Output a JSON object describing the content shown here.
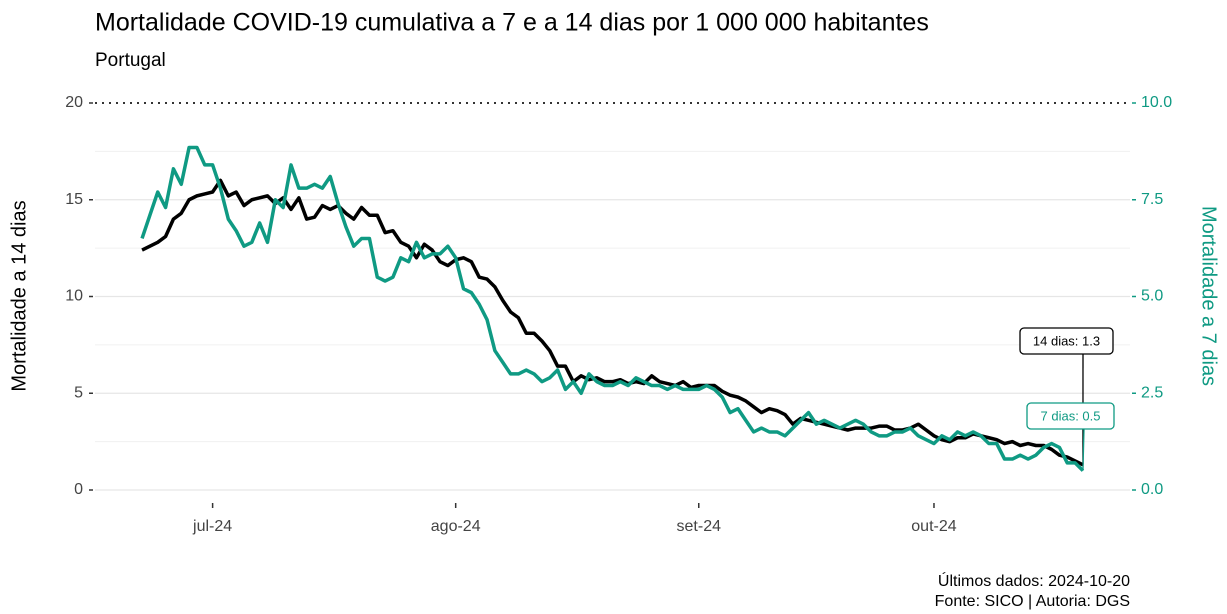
{
  "chart_data": {
    "type": "line",
    "title": "Mortalidade COVID-19 cumulativa a 7 e a 14 dias por 1 000 000 habitantes",
    "subtitle": "Portugal",
    "y_label": "Mortalidade a 14 dias",
    "y2_label": "Mortalidade a 7 dias",
    "footnotes": [
      "Últimos dados: 2024-10-20",
      "Fonte: SICO | Autoria: DGS"
    ],
    "annotations": [
      "14 dias: 1.3",
      "7 dias: 0.5"
    ],
    "x": [
      "2024-06-22",
      "2024-06-23",
      "2024-06-24",
      "2024-06-25",
      "2024-06-26",
      "2024-06-27",
      "2024-06-28",
      "2024-06-29",
      "2024-06-30",
      "2024-07-01",
      "2024-07-02",
      "2024-07-03",
      "2024-07-04",
      "2024-07-05",
      "2024-07-06",
      "2024-07-07",
      "2024-07-08",
      "2024-07-09",
      "2024-07-10",
      "2024-07-11",
      "2024-07-12",
      "2024-07-13",
      "2024-07-14",
      "2024-07-15",
      "2024-07-16",
      "2024-07-17",
      "2024-07-18",
      "2024-07-19",
      "2024-07-20",
      "2024-07-21",
      "2024-07-22",
      "2024-07-23",
      "2024-07-24",
      "2024-07-25",
      "2024-07-26",
      "2024-07-27",
      "2024-07-28",
      "2024-07-29",
      "2024-07-30",
      "2024-07-31",
      "2024-08-01",
      "2024-08-02",
      "2024-08-03",
      "2024-08-04",
      "2024-08-05",
      "2024-08-06",
      "2024-08-07",
      "2024-08-08",
      "2024-08-09",
      "2024-08-10",
      "2024-08-11",
      "2024-08-12",
      "2024-08-13",
      "2024-08-14",
      "2024-08-15",
      "2024-08-16",
      "2024-08-17",
      "2024-08-18",
      "2024-08-19",
      "2024-08-20",
      "2024-08-21",
      "2024-08-22",
      "2024-08-23",
      "2024-08-24",
      "2024-08-25",
      "2024-08-26",
      "2024-08-27",
      "2024-08-28",
      "2024-08-29",
      "2024-08-30",
      "2024-08-31",
      "2024-09-01",
      "2024-09-02",
      "2024-09-03",
      "2024-09-04",
      "2024-09-05",
      "2024-09-06",
      "2024-09-07",
      "2024-09-08",
      "2024-09-09",
      "2024-09-10",
      "2024-09-11",
      "2024-09-12",
      "2024-09-13",
      "2024-09-14",
      "2024-09-15",
      "2024-09-16",
      "2024-09-17",
      "2024-09-18",
      "2024-09-19",
      "2024-09-20",
      "2024-09-21",
      "2024-09-22",
      "2024-09-23",
      "2024-09-24",
      "2024-09-25",
      "2024-09-26",
      "2024-09-27",
      "2024-09-28",
      "2024-09-29",
      "2024-09-30",
      "2024-10-01",
      "2024-10-02",
      "2024-10-03",
      "2024-10-04",
      "2024-10-05",
      "2024-10-06",
      "2024-10-07",
      "2024-10-08",
      "2024-10-09",
      "2024-10-10",
      "2024-10-11",
      "2024-10-12",
      "2024-10-13",
      "2024-10-14",
      "2024-10-15",
      "2024-10-16",
      "2024-10-17",
      "2024-10-18",
      "2024-10-19",
      "2024-10-20"
    ],
    "series": [
      {
        "name": "14 dias",
        "color": "#000000",
        "axis": "y",
        "values": [
          12.4,
          12.6,
          12.8,
          13.1,
          14.0,
          14.3,
          15.0,
          15.2,
          15.3,
          15.4,
          16.0,
          15.2,
          15.4,
          14.7,
          15.0,
          15.1,
          15.2,
          14.8,
          15.1,
          14.5,
          15.1,
          14.0,
          14.1,
          14.7,
          14.5,
          14.7,
          14.3,
          14.0,
          14.6,
          14.2,
          14.2,
          13.3,
          13.4,
          12.8,
          12.6,
          12.0,
          12.7,
          12.4,
          11.8,
          11.6,
          11.9,
          12.0,
          11.8,
          11.0,
          10.9,
          10.5,
          9.8,
          9.2,
          8.9,
          8.1,
          8.1,
          7.7,
          7.2,
          6.4,
          6.4,
          5.6,
          5.9,
          5.7,
          5.8,
          5.6,
          5.6,
          5.7,
          5.5,
          5.6,
          5.5,
          5.9,
          5.6,
          5.5,
          5.4,
          5.6,
          5.3,
          5.4,
          5.4,
          5.4,
          5.1,
          4.9,
          4.8,
          4.6,
          4.3,
          4.0,
          4.2,
          4.1,
          3.9,
          3.4,
          3.7,
          3.6,
          3.5,
          3.4,
          3.3,
          3.2,
          3.1,
          3.2,
          3.2,
          3.2,
          3.3,
          3.3,
          3.1,
          3.1,
          3.2,
          3.4,
          3.1,
          2.8,
          2.6,
          2.5,
          2.7,
          2.7,
          2.9,
          2.8,
          2.7,
          2.6,
          2.4,
          2.5,
          2.3,
          2.4,
          2.3,
          2.3,
          2.1,
          1.8,
          1.7,
          1.5,
          1.3
        ]
      },
      {
        "name": "7 dias",
        "color": "#0f9a83",
        "axis": "y2",
        "values": [
          6.5,
          7.1,
          7.7,
          7.3,
          8.3,
          7.9,
          8.85,
          8.85,
          8.4,
          8.4,
          7.8,
          7.0,
          6.7,
          6.3,
          6.4,
          6.9,
          6.4,
          7.5,
          7.3,
          8.4,
          7.8,
          7.8,
          7.9,
          7.8,
          8.1,
          7.4,
          6.8,
          6.3,
          6.5,
          6.5,
          5.5,
          5.4,
          5.5,
          6.0,
          5.9,
          6.4,
          6.0,
          6.1,
          6.1,
          6.3,
          6.0,
          5.2,
          5.1,
          4.8,
          4.4,
          3.6,
          3.3,
          3.0,
          3.0,
          3.1,
          3.0,
          2.8,
          2.9,
          3.1,
          2.6,
          2.8,
          2.5,
          3.0,
          2.8,
          2.7,
          2.7,
          2.8,
          2.7,
          2.9,
          2.8,
          2.7,
          2.7,
          2.6,
          2.7,
          2.6,
          2.6,
          2.6,
          2.7,
          2.6,
          2.4,
          2.0,
          2.1,
          1.8,
          1.5,
          1.6,
          1.5,
          1.5,
          1.4,
          1.6,
          1.8,
          2.0,
          1.7,
          1.8,
          1.7,
          1.6,
          1.7,
          1.8,
          1.7,
          1.5,
          1.4,
          1.4,
          1.5,
          1.5,
          1.6,
          1.4,
          1.3,
          1.2,
          1.4,
          1.3,
          1.5,
          1.4,
          1.5,
          1.4,
          1.2,
          1.2,
          0.8,
          0.8,
          0.9,
          0.8,
          0.9,
          1.1,
          1.2,
          1.1,
          0.7,
          0.7,
          0.5
        ]
      }
    ],
    "xlim": [
      "2024-06-16",
      "2024-10-26"
    ],
    "xticks": [
      {
        "value": "2024-07-01",
        "label": "jul-24"
      },
      {
        "value": "2024-08-01",
        "label": "ago-24"
      },
      {
        "value": "2024-09-01",
        "label": "set-24"
      },
      {
        "value": "2024-10-01",
        "label": "out-24"
      }
    ],
    "ylim": [
      0,
      20
    ],
    "yticks": [
      0,
      5,
      10,
      15,
      20
    ],
    "y2lim": [
      0,
      10
    ],
    "y2ticks": [
      {
        "value": 0,
        "label": "0.0"
      },
      2.5,
      {
        "value": 5,
        "label": "5.0"
      },
      7.5,
      {
        "value": 10,
        "label": "10.0"
      }
    ],
    "grid": true
  }
}
